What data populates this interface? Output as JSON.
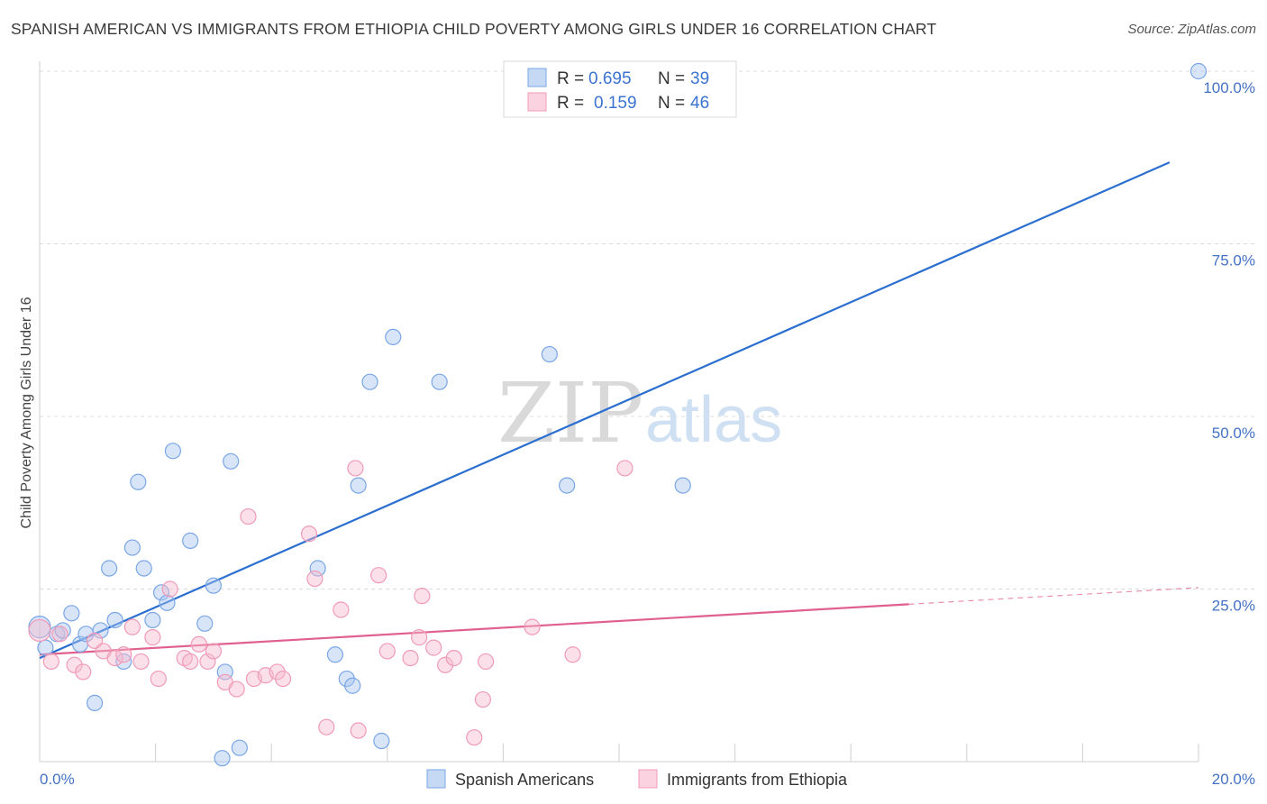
{
  "title": "SPANISH AMERICAN VS IMMIGRANTS FROM ETHIOPIA CHILD POVERTY AMONG GIRLS UNDER 16 CORRELATION CHART",
  "source": "Source: ZipAtlas.com",
  "watermark": {
    "zip": "ZIP",
    "atlas": "atlas"
  },
  "chart_data": {
    "type": "scatter",
    "title": "SPANISH AMERICAN VS IMMIGRANTS FROM ETHIOPIA CHILD POVERTY AMONG GIRLS UNDER 16 CORRELATION CHART",
    "xlabel": "",
    "ylabel": "Child Poverty Among Girls Under 16",
    "xlim": [
      0,
      20
    ],
    "ylim": [
      0,
      100
    ],
    "x_tick_labels": [
      "0.0%",
      "20.0%"
    ],
    "y_tick_labels": [
      "100.0%",
      "75.0%",
      "50.0%",
      "25.0%"
    ],
    "y_tick_values": [
      100,
      75,
      50,
      25
    ],
    "legend_position": "top-center",
    "series": [
      {
        "name": "Spanish Americans",
        "color": "#6fa3e6",
        "line_color": "#2a6fd0",
        "R": "0.695",
        "N": "39",
        "trend": {
          "x0": 0,
          "y0": 15.0,
          "x1": 19.5,
          "y1": 86.8,
          "dashed_from": null
        },
        "points": [
          [
            0.0,
            19.5
          ],
          [
            0.1,
            16.5
          ],
          [
            0.3,
            18.5
          ],
          [
            0.4,
            19.0
          ],
          [
            0.55,
            21.5
          ],
          [
            0.7,
            17.0
          ],
          [
            0.8,
            18.5
          ],
          [
            0.95,
            8.5
          ],
          [
            1.05,
            19.0
          ],
          [
            1.2,
            28.0
          ],
          [
            1.3,
            20.5
          ],
          [
            1.45,
            14.5
          ],
          [
            1.6,
            31.0
          ],
          [
            1.7,
            40.5
          ],
          [
            1.8,
            28.0
          ],
          [
            1.95,
            20.5
          ],
          [
            2.1,
            24.5
          ],
          [
            2.2,
            23.0
          ],
          [
            2.3,
            45.0
          ],
          [
            2.6,
            32.0
          ],
          [
            2.85,
            20.0
          ],
          [
            3.0,
            25.5
          ],
          [
            3.15,
            0.5
          ],
          [
            3.2,
            13.0
          ],
          [
            3.3,
            43.5
          ],
          [
            3.45,
            2.0
          ],
          [
            4.8,
            28.0
          ],
          [
            5.1,
            15.5
          ],
          [
            5.3,
            12.0
          ],
          [
            5.4,
            11.0
          ],
          [
            5.5,
            40.0
          ],
          [
            5.7,
            55.0
          ],
          [
            5.9,
            3.0
          ],
          [
            6.1,
            61.5
          ],
          [
            6.9,
            55.0
          ],
          [
            8.8,
            59.0
          ],
          [
            9.1,
            40.0
          ],
          [
            11.1,
            40.0
          ],
          [
            20.0,
            100.0
          ]
        ]
      },
      {
        "name": "Immigrants from Ethiopia",
        "color": "#f4a6bf",
        "line_color": "#e0608f",
        "R": "0.159",
        "N": "46",
        "trend": {
          "x0": 0,
          "y0": 15.5,
          "x1": 15.0,
          "y1": 22.8,
          "x2": 20.0,
          "y2": 25.2,
          "dashed_from": 15.0
        },
        "points": [
          [
            0.0,
            19.0
          ],
          [
            0.2,
            14.5
          ],
          [
            0.35,
            18.5
          ],
          [
            0.6,
            14.0
          ],
          [
            0.75,
            13.0
          ],
          [
            0.95,
            17.5
          ],
          [
            1.1,
            16.0
          ],
          [
            1.3,
            15.0
          ],
          [
            1.45,
            15.5
          ],
          [
            1.6,
            19.5
          ],
          [
            1.75,
            14.5
          ],
          [
            1.95,
            18.0
          ],
          [
            2.05,
            12.0
          ],
          [
            2.25,
            25.0
          ],
          [
            2.5,
            15.0
          ],
          [
            2.6,
            14.5
          ],
          [
            2.75,
            17.0
          ],
          [
            2.9,
            14.5
          ],
          [
            3.0,
            16.0
          ],
          [
            3.2,
            11.5
          ],
          [
            3.4,
            10.5
          ],
          [
            3.6,
            35.5
          ],
          [
            3.7,
            12.0
          ],
          [
            3.9,
            12.5
          ],
          [
            4.1,
            13.0
          ],
          [
            4.2,
            12.0
          ],
          [
            4.65,
            33.0
          ],
          [
            4.75,
            26.5
          ],
          [
            4.95,
            5.0
          ],
          [
            5.2,
            22.0
          ],
          [
            5.45,
            42.5
          ],
          [
            5.5,
            4.5
          ],
          [
            5.85,
            27.0
          ],
          [
            6.0,
            16.0
          ],
          [
            6.4,
            15.0
          ],
          [
            6.55,
            18.0
          ],
          [
            6.6,
            24.0
          ],
          [
            6.8,
            16.5
          ],
          [
            7.0,
            14.0
          ],
          [
            7.15,
            15.0
          ],
          [
            7.5,
            3.5
          ],
          [
            7.65,
            9.0
          ],
          [
            7.7,
            14.5
          ],
          [
            8.5,
            19.5
          ],
          [
            9.2,
            15.5
          ],
          [
            10.1,
            42.5
          ]
        ]
      }
    ]
  }
}
